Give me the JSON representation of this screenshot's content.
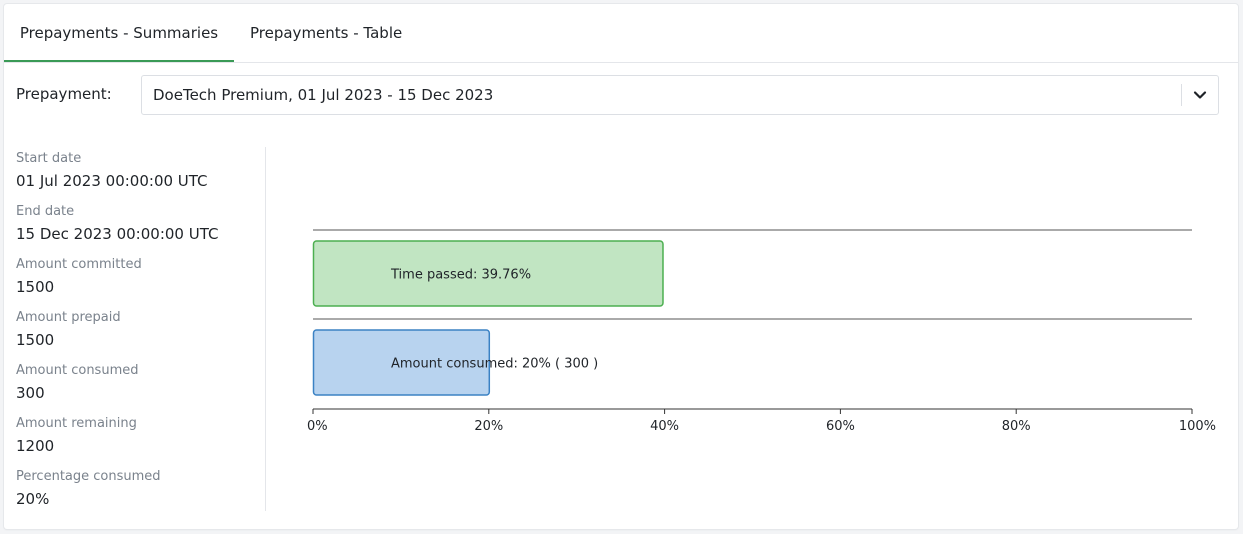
{
  "tabs": [
    {
      "label": "Prepayments - Summaries",
      "active": true
    },
    {
      "label": "Prepayments - Table",
      "active": false
    }
  ],
  "prepayment_select": {
    "label": "Prepayment:",
    "value": "DoeTech Premium, 01 Jul 2023 - 15 Dec 2023"
  },
  "details": [
    {
      "label": "Start date",
      "value": "01 Jul 2023 00:00:00 UTC"
    },
    {
      "label": "End date",
      "value": "15 Dec 2023 00:00:00 UTC"
    },
    {
      "label": "Amount committed",
      "value": "1500"
    },
    {
      "label": "Amount prepaid",
      "value": "1500"
    },
    {
      "label": "Amount consumed",
      "value": "300"
    },
    {
      "label": "Amount remaining",
      "value": "1200"
    },
    {
      "label": "Percentage consumed",
      "value": "20%"
    }
  ],
  "colors": {
    "accent": "#3a9a56",
    "time_fill": "#c1e5c2",
    "time_stroke": "#4caf50",
    "amount_fill": "#b8d3ef",
    "amount_stroke": "#3b82c4"
  },
  "chart_data": {
    "type": "bar",
    "orientation": "horizontal",
    "xlim": [
      0,
      100
    ],
    "x_ticks": [
      0,
      20,
      40,
      60,
      80,
      100
    ],
    "x_tick_labels": [
      "0%",
      "20%",
      "40%",
      "60%",
      "80%",
      "100%"
    ],
    "bars": [
      {
        "value": 39.76,
        "label": "Time passed: 39.76%"
      },
      {
        "value": 20,
        "label": "Amount consumed: 20% ( 300 )"
      }
    ]
  }
}
